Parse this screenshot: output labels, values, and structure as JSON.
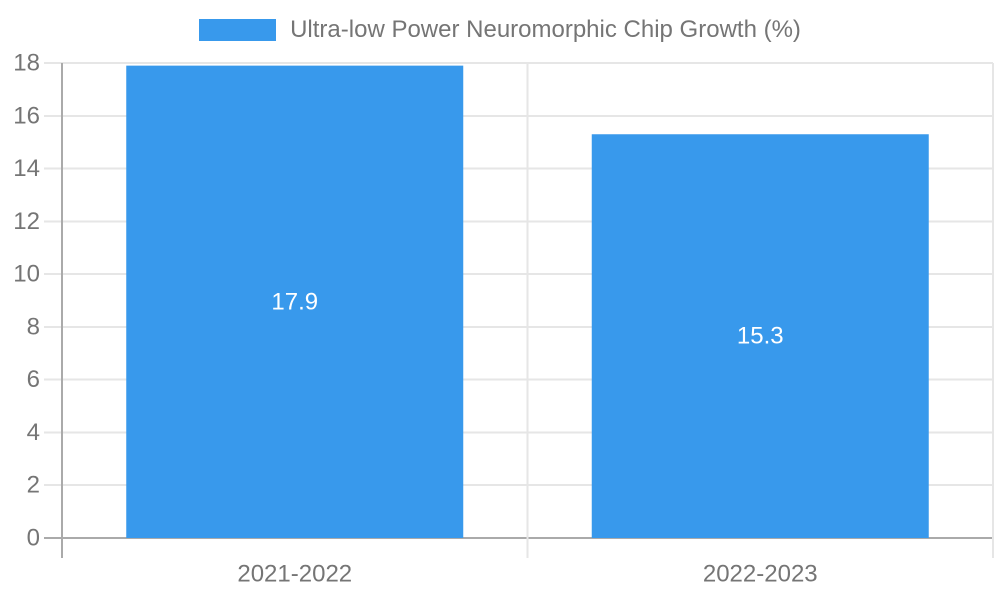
{
  "chart_data": {
    "type": "bar",
    "categories": [
      "2021-2022",
      "2022-2023"
    ],
    "series": [
      {
        "name": "Ultra-low Power Neuromorphic Chip Growth (%)",
        "values": [
          17.9,
          15.3
        ]
      }
    ],
    "value_labels": [
      "17.9",
      "15.3"
    ],
    "title": "",
    "xlabel": "",
    "ylabel": "",
    "ylim": [
      0,
      18
    ],
    "yticks": [
      0,
      2,
      4,
      6,
      8,
      10,
      12,
      14,
      16,
      18
    ],
    "grid": true,
    "legend_position": "top-center",
    "colors": {
      "bar": "#3899ec",
      "grid": "#e6e6e6",
      "axis": "#aaaaaa",
      "tick_text": "#757575",
      "value_label": "#ffffff",
      "background": "#ffffff"
    }
  }
}
